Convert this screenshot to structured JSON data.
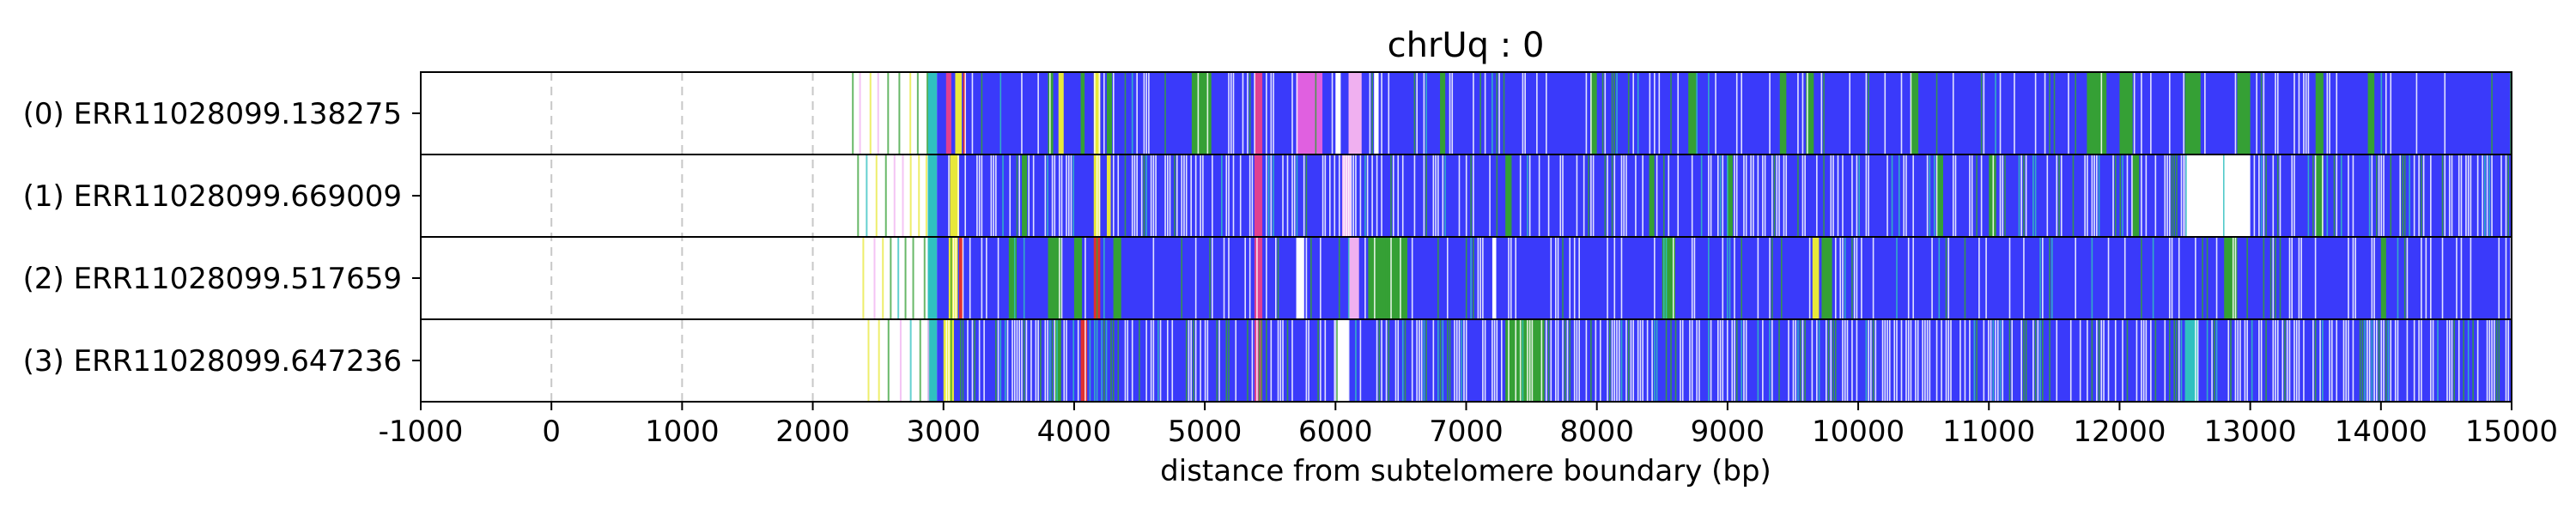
{
  "chart_data": {
    "type": "heatmap",
    "title": "chrUq : 0",
    "xlabel": "distance from subtelomere boundary (bp)",
    "xlim": [
      -1000,
      15000
    ],
    "xticks": [
      -1000,
      0,
      1000,
      2000,
      3000,
      4000,
      5000,
      6000,
      7000,
      8000,
      9000,
      10000,
      11000,
      12000,
      13000,
      14000,
      15000
    ],
    "grid": "vertical dashed",
    "colors": {
      "dense": "#3a3afa",
      "green": "#35a035",
      "yellow": "#e8e83a",
      "red": "#e03030",
      "pink": "#e04090",
      "magenta": "#e060e0",
      "lightpink": "#f0b0f0",
      "cyan": "#30c0c0",
      "white": "#ffffff"
    },
    "rows": [
      {
        "label": "(0) ERR11028099.138275",
        "segments": [
          {
            "start": 2950,
            "end": 15000,
            "color": "dense"
          },
          {
            "start": 2880,
            "end": 2950,
            "color": "cyan"
          },
          {
            "start": 3020,
            "end": 3060,
            "color": "pink"
          },
          {
            "start": 3090,
            "end": 3140,
            "color": "yellow"
          },
          {
            "start": 3150,
            "end": 3170,
            "color": "red"
          },
          {
            "start": 3800,
            "end": 3840,
            "color": "green"
          },
          {
            "start": 3880,
            "end": 3920,
            "color": "yellow"
          },
          {
            "start": 4050,
            "end": 4080,
            "color": "green"
          },
          {
            "start": 4150,
            "end": 4200,
            "color": "yellow"
          },
          {
            "start": 4250,
            "end": 4290,
            "color": "green"
          },
          {
            "start": 4900,
            "end": 5050,
            "color": "green"
          },
          {
            "start": 5380,
            "end": 5440,
            "color": "pink"
          },
          {
            "start": 5700,
            "end": 5900,
            "color": "magenta"
          },
          {
            "start": 6000,
            "end": 6040,
            "color": "white"
          },
          {
            "start": 6100,
            "end": 6200,
            "color": "lightpink"
          },
          {
            "start": 6300,
            "end": 6330,
            "color": "white"
          },
          {
            "start": 6800,
            "end": 6840,
            "color": "green"
          },
          {
            "start": 7950,
            "end": 8000,
            "color": "green"
          },
          {
            "start": 8700,
            "end": 8760,
            "color": "green"
          },
          {
            "start": 9400,
            "end": 9450,
            "color": "green"
          },
          {
            "start": 9600,
            "end": 9660,
            "color": "green"
          },
          {
            "start": 10400,
            "end": 10460,
            "color": "green"
          },
          {
            "start": 11750,
            "end": 11900,
            "color": "green"
          },
          {
            "start": 12000,
            "end": 12100,
            "color": "green"
          },
          {
            "start": 12500,
            "end": 12620,
            "color": "green"
          },
          {
            "start": 12900,
            "end": 13000,
            "color": "green"
          },
          {
            "start": 13500,
            "end": 13560,
            "color": "green"
          },
          {
            "start": 13900,
            "end": 13950,
            "color": "green"
          }
        ]
      },
      {
        "label": "(1) ERR11028099.669009",
        "segments": [
          {
            "start": 2950,
            "end": 15000,
            "color": "dense"
          },
          {
            "start": 2880,
            "end": 2950,
            "color": "cyan"
          },
          {
            "start": 3050,
            "end": 3120,
            "color": "yellow"
          },
          {
            "start": 3600,
            "end": 3640,
            "color": "green"
          },
          {
            "start": 4150,
            "end": 4200,
            "color": "yellow"
          },
          {
            "start": 4250,
            "end": 4280,
            "color": "yellow"
          },
          {
            "start": 5380,
            "end": 5440,
            "color": "pink"
          },
          {
            "start": 6050,
            "end": 6120,
            "color": "lightpink"
          },
          {
            "start": 7300,
            "end": 7340,
            "color": "green"
          },
          {
            "start": 8400,
            "end": 8440,
            "color": "green"
          },
          {
            "start": 9000,
            "end": 9040,
            "color": "green"
          },
          {
            "start": 10600,
            "end": 10650,
            "color": "green"
          },
          {
            "start": 11000,
            "end": 11050,
            "color": "green"
          },
          {
            "start": 12100,
            "end": 12150,
            "color": "green"
          },
          {
            "start": 12500,
            "end": 13000,
            "color": "white"
          },
          {
            "start": 13500,
            "end": 13560,
            "color": "green"
          }
        ]
      },
      {
        "label": "(2) ERR11028099.517659",
        "segments": [
          {
            "start": 2950,
            "end": 15000,
            "color": "dense"
          },
          {
            "start": 2880,
            "end": 2950,
            "color": "cyan"
          },
          {
            "start": 3040,
            "end": 3110,
            "color": "yellow"
          },
          {
            "start": 3120,
            "end": 3150,
            "color": "red"
          },
          {
            "start": 3500,
            "end": 3560,
            "color": "green"
          },
          {
            "start": 3800,
            "end": 3900,
            "color": "green"
          },
          {
            "start": 4000,
            "end": 4060,
            "color": "green"
          },
          {
            "start": 4150,
            "end": 4200,
            "color": "red"
          },
          {
            "start": 4300,
            "end": 4360,
            "color": "green"
          },
          {
            "start": 5380,
            "end": 5440,
            "color": "pink"
          },
          {
            "start": 5700,
            "end": 5760,
            "color": "white"
          },
          {
            "start": 6100,
            "end": 6180,
            "color": "lightpink"
          },
          {
            "start": 6250,
            "end": 6550,
            "color": "green"
          },
          {
            "start": 7200,
            "end": 7230,
            "color": "white"
          },
          {
            "start": 8500,
            "end": 8600,
            "color": "green"
          },
          {
            "start": 9650,
            "end": 9700,
            "color": "yellow"
          },
          {
            "start": 9720,
            "end": 9800,
            "color": "green"
          },
          {
            "start": 12800,
            "end": 12900,
            "color": "green"
          },
          {
            "start": 14000,
            "end": 14040,
            "color": "green"
          }
        ]
      },
      {
        "label": "(3) ERR11028099.647236",
        "segments": [
          {
            "start": 2950,
            "end": 15000,
            "color": "dense"
          },
          {
            "start": 2880,
            "end": 2950,
            "color": "cyan"
          },
          {
            "start": 3000,
            "end": 3080,
            "color": "yellow"
          },
          {
            "start": 3850,
            "end": 3900,
            "color": "green"
          },
          {
            "start": 4050,
            "end": 4100,
            "color": "red"
          },
          {
            "start": 5380,
            "end": 5440,
            "color": "pink"
          },
          {
            "start": 6000,
            "end": 6100,
            "color": "white"
          },
          {
            "start": 7300,
            "end": 7600,
            "color": "green"
          },
          {
            "start": 12500,
            "end": 12600,
            "color": "cyan"
          }
        ]
      }
    ]
  }
}
